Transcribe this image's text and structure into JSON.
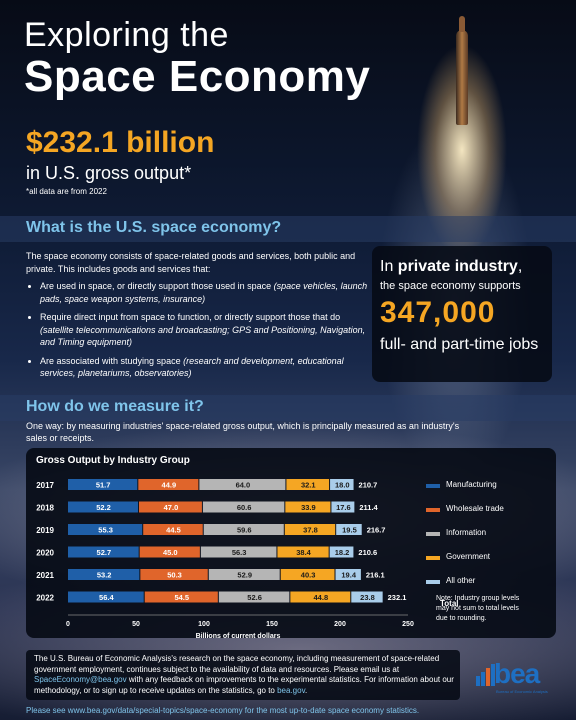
{
  "header": {
    "title_line1": "Exploring the",
    "title_line2": "Space Economy"
  },
  "headline": {
    "value": "$232.1 billion",
    "subtitle": "in U.S. gross output*",
    "note": "*all data are from 2022"
  },
  "section_what": {
    "title": "What is the U.S. space economy?",
    "intro": "The space economy consists of space-related goods and services, both public and private. This includes goods and services that:",
    "bullets": [
      {
        "text": "Are used in space, or directly support those used in space ",
        "italic": "(space vehicles, launch pads, space weapon systems, insurance)"
      },
      {
        "text": "Require direct input from space to function, or directly support those that do ",
        "italic": "(satellite telecommunications and broadcasting; GPS and Positioning, Navigation, and Timing equipment)"
      },
      {
        "text": "Are associated with studying space ",
        "italic": "(research and development, educational services, planetariums, observatories)"
      }
    ]
  },
  "jobs_card": {
    "prefix": "In ",
    "bold": "private industry",
    "suffix": ",",
    "line2": "the space economy supports",
    "number": "347,000",
    "line3": "full- and part-time jobs"
  },
  "section_measure": {
    "title": "How do we measure it?",
    "text": "One way: by measuring industries' space-related gross output, which is principally measured as an industry's sales or receipts."
  },
  "chart_data": {
    "type": "bar",
    "orientation": "horizontal",
    "stacked": true,
    "title": "Gross Output by Industry Group",
    "xlabel": "Billions of current dollars",
    "xlim": [
      0,
      250
    ],
    "xticks": [
      "0",
      "50",
      "100",
      "150",
      "200",
      "250"
    ],
    "categories": [
      "2017",
      "2018",
      "2019",
      "2020",
      "2021",
      "2022"
    ],
    "series": [
      {
        "name": "Manufacturing",
        "color": "#1f5fa8",
        "values": [
          51.7,
          52.2,
          55.3,
          52.7,
          53.2,
          56.4
        ],
        "labels": [
          "51.7",
          "52.2",
          "55.3",
          "52.7",
          "53.2",
          "56.4"
        ]
      },
      {
        "name": "Wholesale trade",
        "color": "#e0652b",
        "values": [
          44.9,
          47.0,
          44.5,
          45.0,
          50.3,
          54.5
        ],
        "labels": [
          "44.9",
          "47.0",
          "44.5",
          "45.0",
          "50.3",
          "54.5"
        ]
      },
      {
        "name": "Information",
        "color": "#b5b5b5",
        "values": [
          64.0,
          60.6,
          59.6,
          56.3,
          52.9,
          52.6
        ],
        "labels": [
          "64.0",
          "60.6",
          "59.6",
          "56.3",
          "52.9",
          "52.6"
        ]
      },
      {
        "name": "Government",
        "color": "#f5a623",
        "values": [
          32.1,
          33.9,
          37.8,
          38.4,
          40.3,
          44.8
        ],
        "labels": [
          "32.1",
          "33.9",
          "37.8",
          "38.4",
          "40.3",
          "44.8"
        ]
      },
      {
        "name": "All other",
        "color": "#a9cdea",
        "values": [
          18.0,
          17.6,
          19.5,
          18.2,
          19.4,
          23.8
        ],
        "labels": [
          "18.0",
          "17.6",
          "19.5",
          "18.2",
          "19.4",
          "23.8"
        ]
      }
    ],
    "totals": [
      "210.7",
      "211.4",
      "216.7",
      "210.6",
      "216.1",
      "232.1"
    ],
    "total_label": "Total",
    "legend_position": "right",
    "note": "Note: Industry group levels may not sum to total levels due to rounding.",
    "grid": false
  },
  "footer": {
    "text_before_email": "The U.S. Bureau of Economic Analysis's research on the space economy, including measurement of space-related government employment, continues subject to the availability of data and resources. Please email us at ",
    "email": "SpaceEconomy@bea.gov",
    "text_after_email": " with any feedback on improvements to the experimental statistics. For information about our methodology, or to sign up to receive updates on the statistics, go to ",
    "link": "bea.gov",
    "end": "."
  },
  "logo": {
    "text": "bea",
    "subtext": "Bureau of Economic Analysis"
  },
  "bottom_line": "Please see www.bea.gov/data/special-topics/space-economy for the most up-to-date space economy statistics."
}
